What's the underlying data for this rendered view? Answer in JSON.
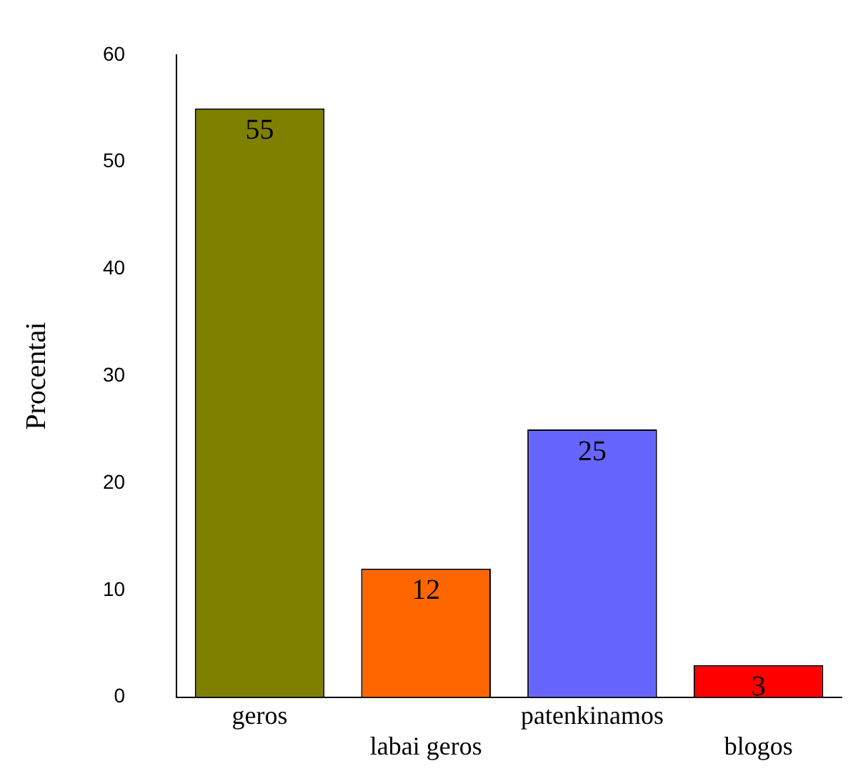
{
  "chart_data": {
    "type": "bar",
    "ylabel": "Procentai",
    "categories": [
      "geros",
      "labai geros",
      "patenkinamos",
      "blogos"
    ],
    "values": [
      55,
      12,
      25,
      3
    ],
    "colors": [
      "#808000",
      "#ff6600",
      "#6666ff",
      "#ff0000"
    ],
    "ylim": [
      0,
      60
    ],
    "yticks": [
      0,
      10,
      20,
      30,
      40,
      50,
      60
    ],
    "grid": false,
    "legend": false,
    "data_labels": true
  }
}
